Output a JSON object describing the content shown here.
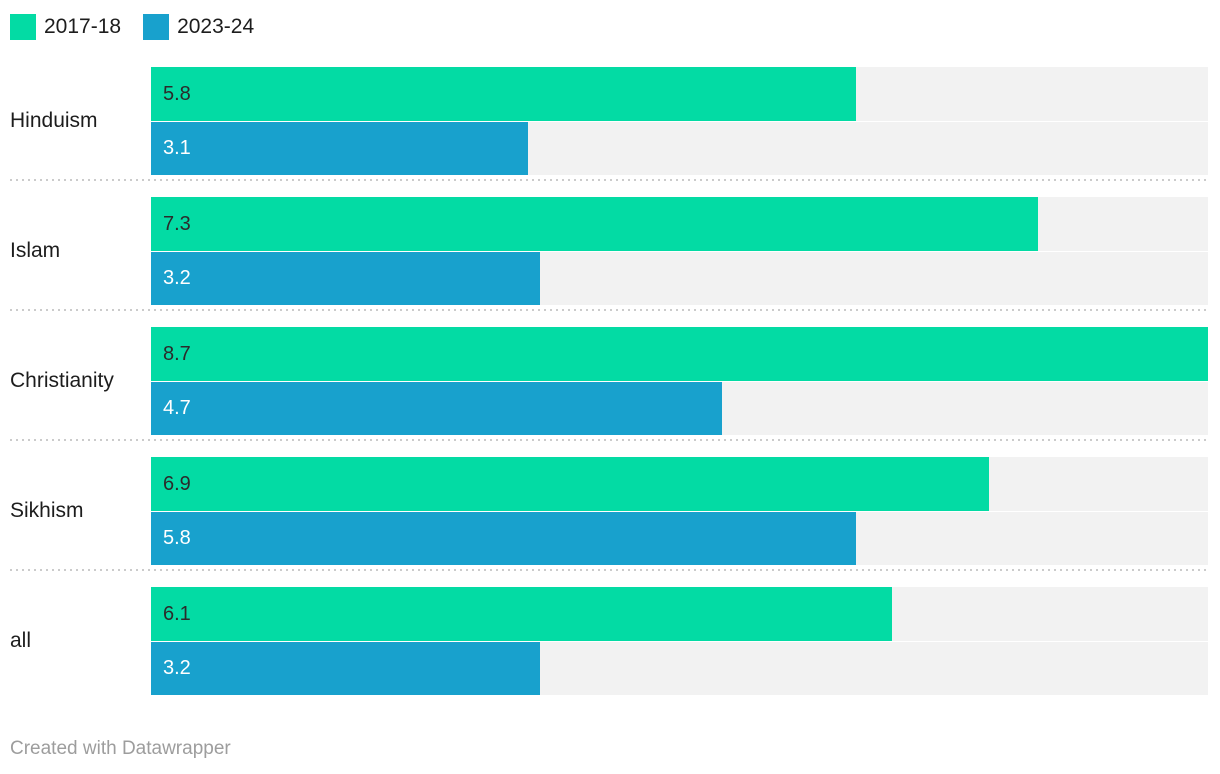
{
  "legend": {
    "items": [
      {
        "label": "2017-18",
        "color": "#03dba4"
      },
      {
        "label": "2023-24",
        "color": "#18a1cd"
      }
    ]
  },
  "chart_data": {
    "type": "bar",
    "orientation": "horizontal",
    "categories": [
      "Hinduism",
      "Islam",
      "Christianity",
      "Sikhism",
      "all"
    ],
    "series": [
      {
        "name": "2017-18",
        "color": "#03dba4",
        "values": [
          5.8,
          7.3,
          8.7,
          6.9,
          6.1
        ]
      },
      {
        "name": "2023-24",
        "color": "#18a1cd",
        "values": [
          3.1,
          3.2,
          4.7,
          5.8,
          3.2
        ]
      }
    ],
    "value_labels": [
      "5.8",
      "3.1",
      "7.3",
      "3.2",
      "8.7",
      "4.7",
      "6.9",
      "5.8",
      "6.1",
      "3.2"
    ],
    "xlim": [
      0,
      8.7
    ],
    "grid": false,
    "legend_position": "top-left",
    "track_color": "#f2f2f2",
    "separator_style": "dotted"
  },
  "footer": {
    "credit": "Created with Datawrapper"
  }
}
